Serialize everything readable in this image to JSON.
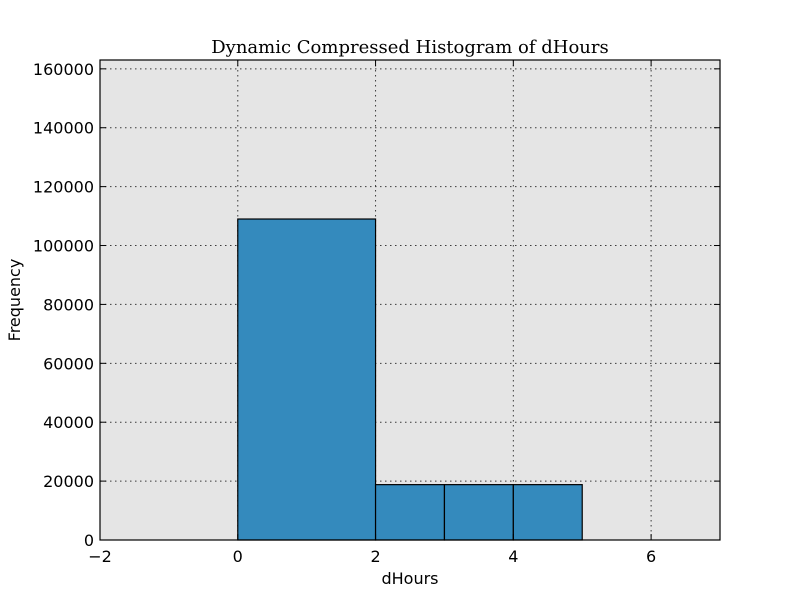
{
  "chart_data": {
    "type": "bar",
    "title": "Dynamic Compressed Histogram of dHours",
    "xlabel": "dHours",
    "ylabel": "Frequency",
    "xlim": [
      -2,
      7
    ],
    "ylim": [
      0,
      163000
    ],
    "xticks": [
      -2,
      0,
      2,
      4,
      6
    ],
    "xtick_labels": [
      "−2",
      "0",
      "2",
      "4",
      "6"
    ],
    "yticks": [
      0,
      20000,
      40000,
      60000,
      80000,
      100000,
      120000,
      140000,
      160000
    ],
    "ytick_labels": [
      "0",
      "20000",
      "40000",
      "60000",
      "80000",
      "100000",
      "120000",
      "140000",
      "160000"
    ],
    "bins": [
      {
        "x0": 0,
        "x1": 2,
        "value": 109000
      },
      {
        "x0": 2,
        "x1": 3,
        "value": 18800
      },
      {
        "x0": 3,
        "x1": 4,
        "value": 18800
      },
      {
        "x0": 4,
        "x1": 5,
        "value": 18800
      }
    ],
    "grid": true,
    "legend": "none",
    "colors": {
      "bar": "#348abd",
      "plot_background": "#e5e5e5"
    }
  }
}
